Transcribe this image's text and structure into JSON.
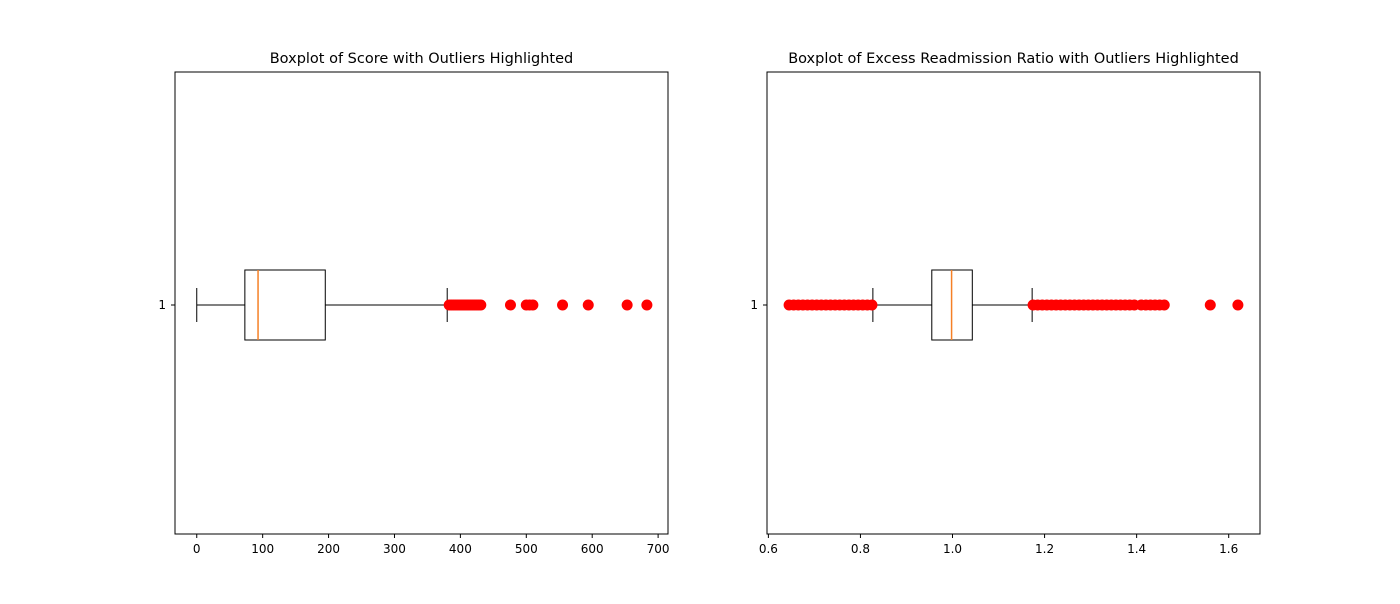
{
  "colors": {
    "box_edge": "#000000",
    "median": "#f58025",
    "outlier": "#ff0000",
    "background": "#ffffff"
  },
  "chart_data": [
    {
      "type": "boxplot",
      "title": "Boxplot of Score with Outliers Highlighted",
      "orientation": "horizontal",
      "xlim": [
        -33,
        715
      ],
      "xticks": [
        0,
        100,
        200,
        300,
        400,
        500,
        600,
        700
      ],
      "xtick_labels": [
        "0",
        "100",
        "200",
        "300",
        "400",
        "500",
        "600",
        "700"
      ],
      "ytick_labels": [
        "1"
      ],
      "grid": false,
      "box": {
        "whisker_low": 0,
        "q1": 73,
        "median": 93,
        "q3": 195,
        "whisker_high": 380
      },
      "outliers": [
        383,
        386,
        389,
        392,
        395,
        398,
        401,
        404,
        407,
        410,
        413,
        416,
        419,
        422,
        425,
        428,
        431,
        476,
        500,
        505,
        510,
        555,
        594,
        653,
        683
      ]
    },
    {
      "type": "boxplot",
      "title": "Boxplot of Excess Readmission Ratio with Outliers Highlighted",
      "orientation": "horizontal",
      "xlim": [
        0.597,
        1.668
      ],
      "xticks": [
        0.6,
        0.8,
        1.0,
        1.2,
        1.4,
        1.6
      ],
      "xtick_labels": [
        "0.6",
        "0.8",
        "1.0",
        "1.2",
        "1.4",
        "1.6"
      ],
      "ytick_labels": [
        "1"
      ],
      "grid": false,
      "box": {
        "whisker_low": 0.827,
        "q1": 0.955,
        "median": 0.998,
        "q3": 1.043,
        "whisker_high": 1.173
      },
      "outliers": [
        0.645,
        0.655,
        0.665,
        0.675,
        0.685,
        0.695,
        0.705,
        0.715,
        0.725,
        0.735,
        0.745,
        0.755,
        0.765,
        0.775,
        0.785,
        0.795,
        0.805,
        0.815,
        0.825,
        1.175,
        1.185,
        1.195,
        1.205,
        1.215,
        1.225,
        1.235,
        1.245,
        1.255,
        1.265,
        1.275,
        1.285,
        1.295,
        1.305,
        1.315,
        1.325,
        1.335,
        1.345,
        1.355,
        1.365,
        1.375,
        1.385,
        1.395,
        1.41,
        1.42,
        1.43,
        1.44,
        1.45,
        1.46,
        1.56,
        1.62
      ]
    }
  ]
}
